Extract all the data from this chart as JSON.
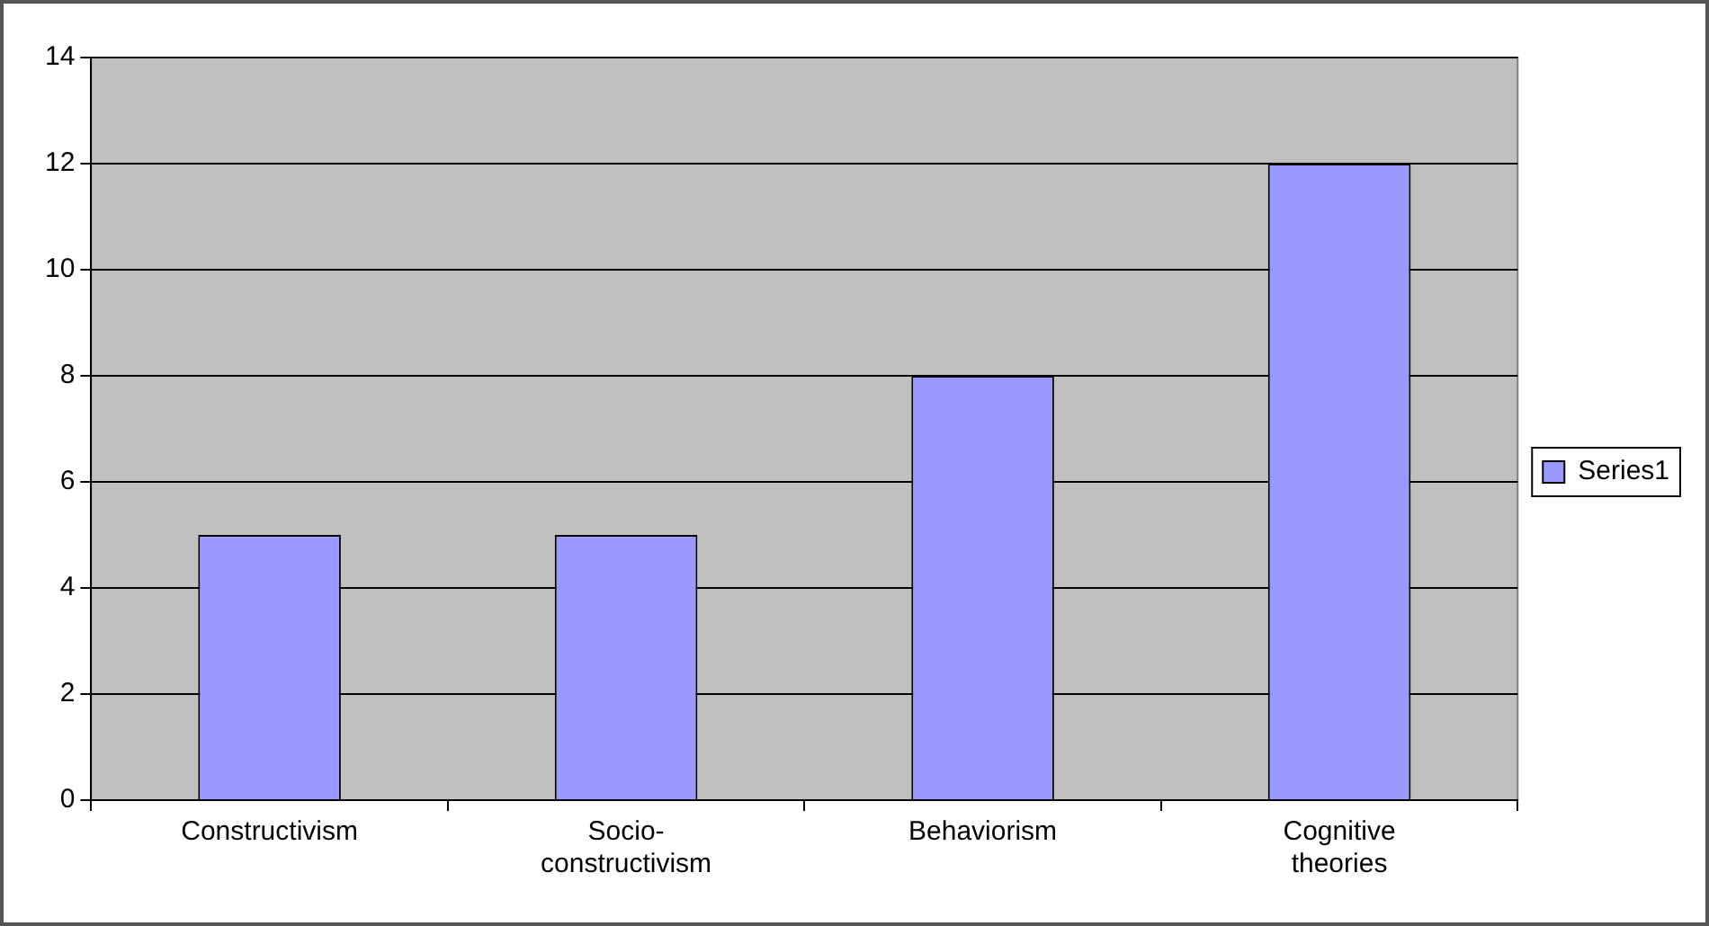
{
  "chart_data": {
    "type": "bar",
    "categories": [
      "Constructivism",
      "Socio-constructivism",
      "Behaviorism",
      "Cognitive theories"
    ],
    "series": [
      {
        "name": "Series1",
        "color": "#9999ff",
        "values": [
          5,
          5,
          8,
          12
        ]
      }
    ],
    "ylim": [
      0,
      14
    ],
    "yticks": [
      0,
      2,
      4,
      6,
      8,
      10,
      12,
      14
    ],
    "grid": "y",
    "legend": "right"
  }
}
